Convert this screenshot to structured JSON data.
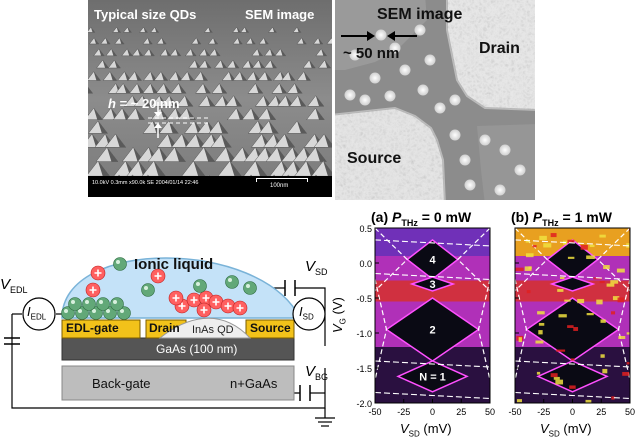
{
  "sem_left": {
    "label_typical": "Typical size QDs",
    "label_sem": "SEM image",
    "height_label_var": "h",
    "height_label_rest": " = ~ 20 nm",
    "scale_bar_text": "100nm",
    "info_bar": "10.0kV 0.3mm x90.0k SE 2004/01/14 22:46"
  },
  "sem_right": {
    "label_sem": "SEM image",
    "dot_size": "~ 50 nm",
    "drain": "Drain",
    "source": "Source"
  },
  "device": {
    "ionic_liquid": "Ionic liquid",
    "edl_gate": "EDL-gate",
    "drain": "Drain",
    "inas_qd": "InAs QD",
    "source": "Source",
    "gaas": "GaAs (100 nm)",
    "back_gate": "Back-gate",
    "substrate": "n+GaAs",
    "v_edl": "EDL",
    "i_edl": "EDL",
    "v_sd": "SD",
    "i_sd": "SD",
    "v_bg": "BG"
  },
  "maps": {
    "panel_a": {
      "letter": "(a)",
      "power_sub": "THz",
      "power_value": " = 0 mW"
    },
    "panel_b": {
      "letter": "(b)",
      "power_sub": "THz",
      "power_value": " = 1 mW"
    },
    "y_axis_label": "V",
    "y_axis_sub": "G",
    "y_axis_unit": " (V)",
    "x_axis_label": "V",
    "x_axis_sub": "SD",
    "x_axis_unit": " (mV)",
    "y_ticks": [
      "0.5",
      "0.0",
      "-0.5",
      "-1.0",
      "-1.5",
      "-2.0"
    ],
    "x_ticks": [
      "-50",
      "-25",
      "0",
      "25",
      "50"
    ],
    "x_ticks_b": [
      "-50",
      "-25",
      "0",
      "25",
      "50"
    ],
    "diamond_labels": [
      "4",
      "3",
      "2",
      "N = 1"
    ]
  },
  "colors": {
    "map_dark": "#0a0a14",
    "map_magenta": "#c030c0",
    "map_purple": "#6a28b0",
    "map_red": "#e02020",
    "map_yellow": "#f0e040",
    "gold": "#f2c21a",
    "ionic": "#bfe0f8",
    "gaas": "#555555",
    "backgate": "#bbbbbb"
  }
}
